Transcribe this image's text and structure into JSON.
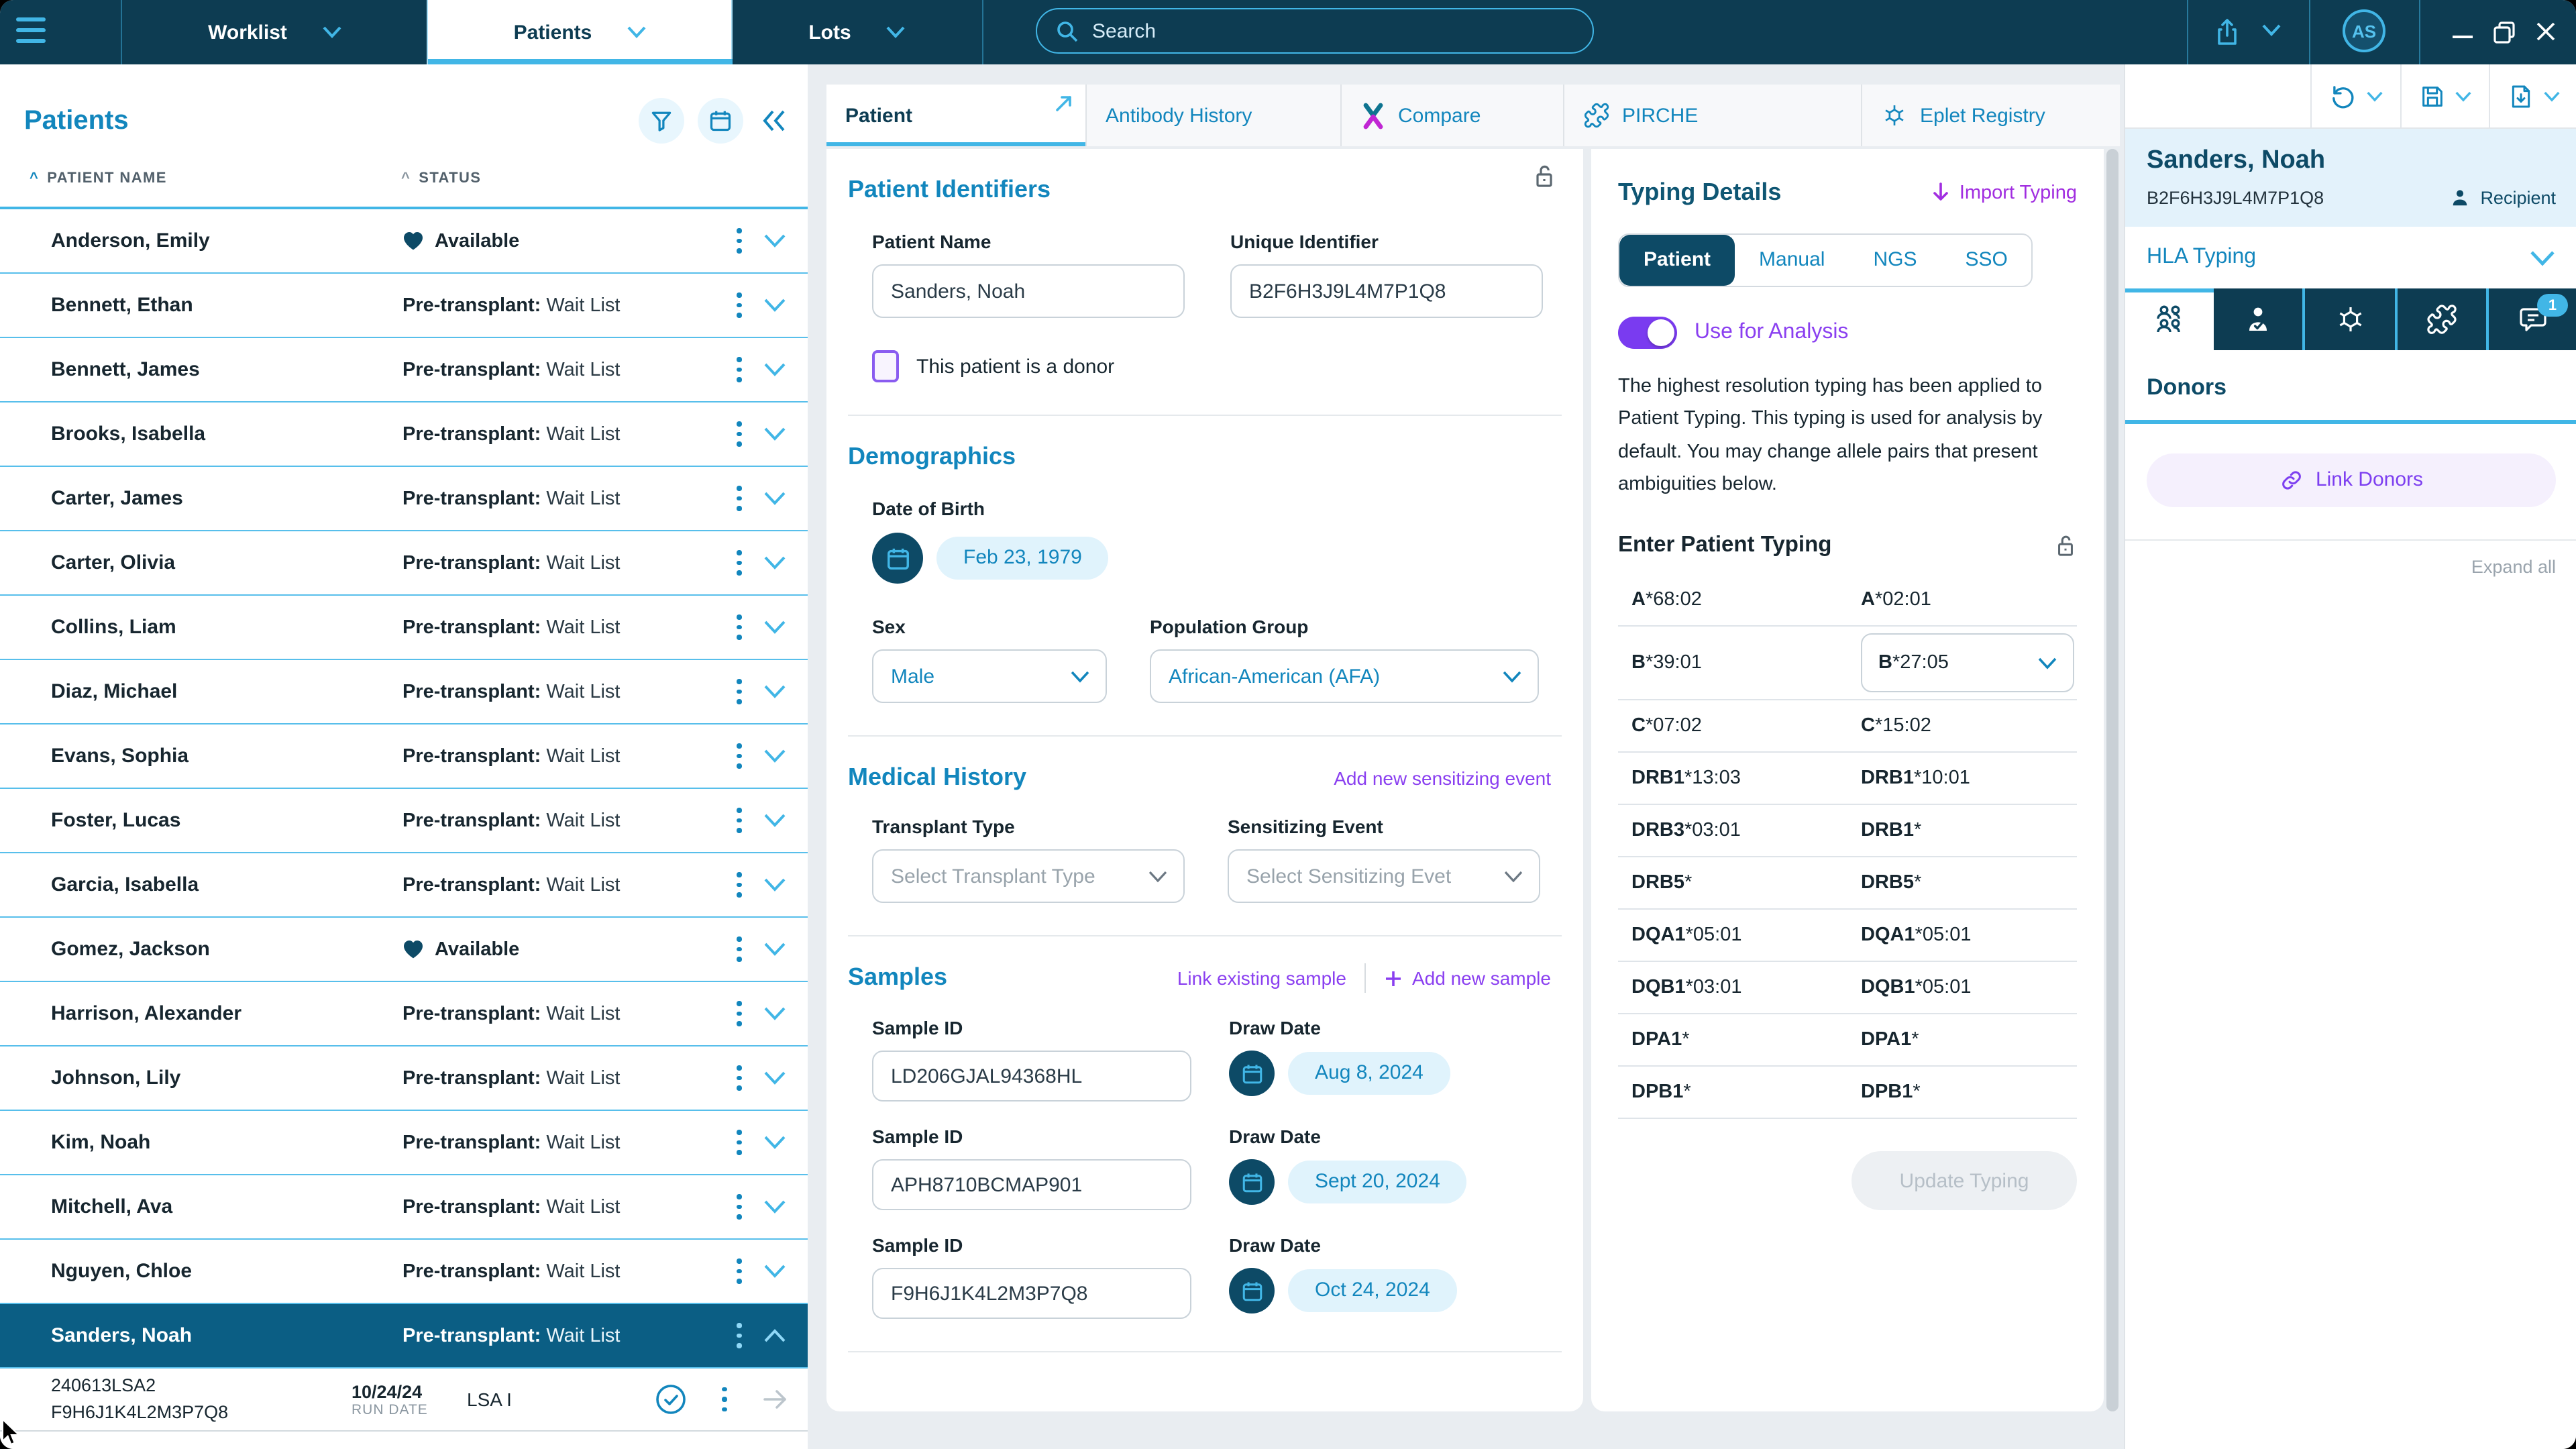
{
  "colors": {
    "topbar_navy": "#0d3c52",
    "accent_light_blue": "#41b6e6",
    "primary_blue": "#1286bd",
    "dark_heading_blue": "#0d4a66",
    "selected_row_teal": "#0b5e84",
    "link_purple": "#8a3ff0",
    "import_magenta": "#a12ee0",
    "light_blue_chip": "#e0f3fc",
    "panel_header_blue": "#e3f2fb"
  },
  "topbar": {
    "nav_worklist": "Worklist",
    "nav_patients": "Patients",
    "nav_lots": "Lots",
    "search_placeholder": "Search",
    "avatar_initials": "AS"
  },
  "left_panel": {
    "title": "Patients",
    "columns": {
      "name": "PATIENT NAME",
      "status": "STATUS"
    },
    "patients": [
      {
        "name": "Anderson, Emily",
        "status": "available",
        "text": "Available"
      },
      {
        "name": "Bennett, Ethan",
        "status": "waitlist",
        "bold": "Pre-transplant:",
        "text": "Wait List"
      },
      {
        "name": "Bennett, James",
        "status": "waitlist",
        "bold": "Pre-transplant:",
        "text": "Wait List"
      },
      {
        "name": "Brooks, Isabella",
        "status": "waitlist",
        "bold": "Pre-transplant:",
        "text": "Wait List"
      },
      {
        "name": "Carter, James",
        "status": "waitlist",
        "bold": "Pre-transplant:",
        "text": "Wait List"
      },
      {
        "name": "Carter, Olivia",
        "status": "waitlist",
        "bold": "Pre-transplant:",
        "text": "Wait List"
      },
      {
        "name": "Collins, Liam",
        "status": "waitlist",
        "bold": "Pre-transplant:",
        "text": "Wait List"
      },
      {
        "name": "Diaz, Michael",
        "status": "waitlist",
        "bold": "Pre-transplant:",
        "text": "Wait List"
      },
      {
        "name": "Evans, Sophia",
        "status": "waitlist",
        "bold": "Pre-transplant:",
        "text": "Wait List"
      },
      {
        "name": "Foster, Lucas",
        "status": "waitlist",
        "bold": "Pre-transplant:",
        "text": "Wait List"
      },
      {
        "name": "Garcia, Isabella",
        "status": "waitlist",
        "bold": "Pre-transplant:",
        "text": "Wait List"
      },
      {
        "name": "Gomez, Jackson",
        "status": "available",
        "text": "Available"
      },
      {
        "name": "Harrison, Alexander",
        "status": "waitlist",
        "bold": "Pre-transplant:",
        "text": "Wait List"
      },
      {
        "name": "Johnson, Lily",
        "status": "waitlist",
        "bold": "Pre-transplant:",
        "text": "Wait List"
      },
      {
        "name": "Kim, Noah",
        "status": "waitlist",
        "bold": "Pre-transplant:",
        "text": "Wait List"
      },
      {
        "name": "Mitchell, Ava",
        "status": "waitlist",
        "bold": "Pre-transplant:",
        "text": "Wait List"
      },
      {
        "name": "Nguyen, Chloe",
        "status": "waitlist",
        "bold": "Pre-transplant:",
        "text": "Wait List"
      },
      {
        "name": "Sanders, Noah",
        "status": "waitlist",
        "bold": "Pre-transplant:",
        "text": "Wait List",
        "selected": true
      }
    ],
    "expanded_row": {
      "sample_code": "240613LSA2",
      "sample_id": "F9H6J1K4L2M3P7Q8",
      "run_date": "10/24/24",
      "run_date_label": "RUN DATE",
      "assay": "LSA I"
    }
  },
  "tabs": [
    "Patient",
    "Antibody History",
    "Compare",
    "PIRCHE",
    "Eplet Registry"
  ],
  "patient_form": {
    "identifiers_title": "Patient Identifiers",
    "name_label": "Patient Name",
    "name_value": "Sanders, Noah",
    "uid_label": "Unique Identifier",
    "uid_value": "B2F6H3J9L4M7P1Q8",
    "donor_checkbox": "This patient is a donor",
    "demographics_title": "Demographics",
    "dob_label": "Date of Birth",
    "dob_value": "Feb 23, 1979",
    "sex_label": "Sex",
    "sex_value": "Male",
    "population_label": "Population Group",
    "population_value": "African-American (AFA)",
    "medical_title": "Medical History",
    "add_sensitizing_link": "Add new sensitizing event",
    "transplant_label": "Transplant Type",
    "transplant_placeholder": "Select Transplant Type",
    "sensitizing_label": "Sensitizing Event",
    "sensitizing_placeholder": "Select Sensitizing Evet",
    "samples_title": "Samples",
    "link_existing": "Link existing sample",
    "add_new": "Add new sample",
    "sample_id_label": "Sample ID",
    "draw_date_label": "Draw Date",
    "samples": [
      {
        "id": "LD206GJAL94368HL",
        "date": "Aug 8, 2024"
      },
      {
        "id": "APH8710BCMAP901",
        "date": "Sept 20, 2024"
      },
      {
        "id": "F9H6J1K4L2M3P7Q8",
        "date": "Oct 24, 2024"
      }
    ]
  },
  "typing_panel": {
    "title": "Typing Details",
    "import_link": "Import Typing",
    "segments": [
      "Patient",
      "Manual",
      "NGS",
      "SSO"
    ],
    "active_segment": "Patient",
    "toggle_label": "Use for Analysis",
    "toggle_state": "on",
    "description": "The highest resolution typing has been applied to Patient Typing. This typing is used for analysis by default. You may change allele pairs that present ambiguities below.",
    "enter_title": "Enter Patient Typing",
    "rows": [
      {
        "left_gene": "A",
        "left_rest": "*68:02",
        "right_gene": "A",
        "right_rest": "*02:01"
      },
      {
        "left_gene": "B",
        "left_rest": "*39:01",
        "right_gene": "B",
        "right_rest": "*27:05",
        "right_select": true
      },
      {
        "left_gene": "C",
        "left_rest": "*07:02",
        "right_gene": "C",
        "right_rest": "*15:02"
      },
      {
        "left_gene": "DRB1",
        "left_rest": "*13:03",
        "right_gene": "DRB1",
        "right_rest": "*10:01"
      },
      {
        "left_gene": "DRB3",
        "left_rest": "*03:01",
        "right_gene": "DRB1",
        "right_rest": "*"
      },
      {
        "left_gene": "DRB5",
        "left_rest": "*",
        "right_gene": "DRB5",
        "right_rest": "*"
      },
      {
        "left_gene": "DQA1",
        "left_rest": "*05:01",
        "right_gene": "DQA1",
        "right_rest": "*05:01"
      },
      {
        "left_gene": "DQB1",
        "left_rest": "*03:01",
        "right_gene": "DQB1",
        "right_rest": "*05:01"
      },
      {
        "left_gene": "DPA1",
        "left_rest": "*",
        "right_gene": "DPA1",
        "right_rest": "*"
      },
      {
        "left_gene": "DPB1",
        "left_rest": "*",
        "right_gene": "DPB1",
        "right_rest": "*"
      }
    ],
    "update_button": "Update Typing"
  },
  "right_panel": {
    "patient_name": "Sanders, Noah",
    "patient_id": "B2F6H3J9L4M7P1Q8",
    "role_label": "Recipient",
    "hla_section": "HLA Typing",
    "chat_badge": "1",
    "donors_title": "Donors",
    "link_donors_button": "Link Donors",
    "expand_all": "Expand all"
  },
  "icons": {
    "menu-icon": "hamburger bars",
    "search-icon": "magnifier",
    "share-icon": "arrow up from tray",
    "chevron-down-icon": "v",
    "minimize-icon": "underscore",
    "restore-icon": "overlapping squares",
    "close-icon": "x",
    "filter-icon": "funnel",
    "calendar-icon": "calendar",
    "collapse-panel-icon": "double chevron left",
    "sort-asc-icon": "caret up",
    "kebab-menu-icon": "three vertical dots",
    "heart-icon": "filled heart",
    "check-circle-icon": "check in circle",
    "arrow-right-icon": "right arrow",
    "external-link-icon": "north-east arrow",
    "compare-icon": "two-color X",
    "pirche-icon": "puzzle piece",
    "eplet-registry-icon": "hex snowflake",
    "lock-open-icon": "open padlock",
    "toggle-on-icon": "purple switch on",
    "person-icon": "person silhouette",
    "undo-icon": "counterclockwise arrow",
    "save-icon": "floppy disk",
    "export-doc-icon": "document with down arrow",
    "people-group-icon": "four people",
    "person-check-icon": "person with check",
    "molecule-icon": "hexagon with bonds",
    "chat-icon": "speech bubble",
    "link-icon": "chain link",
    "plus-icon": "+",
    "import-arrow-icon": "down arrow"
  }
}
